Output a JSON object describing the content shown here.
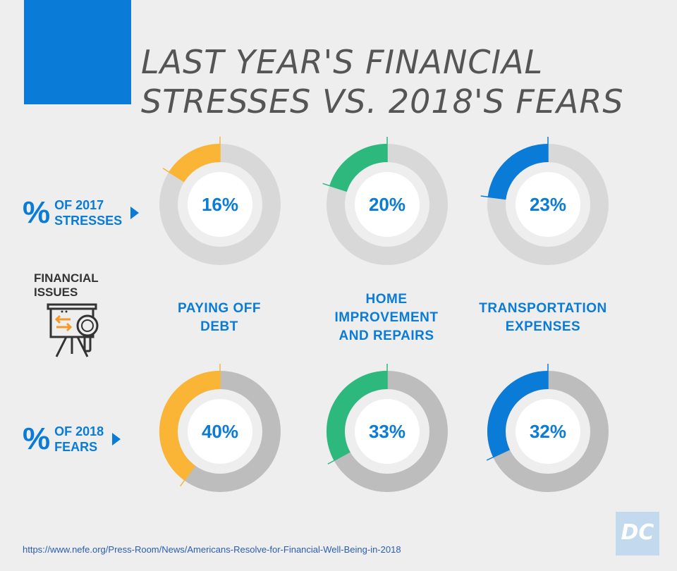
{
  "title": {
    "line1": "LAST YEAR'S FINANCIAL",
    "line2": "STRESSES VS. 2018'S FEARS"
  },
  "rows": {
    "stresses": {
      "pct_sign": "%",
      "line1": "OF 2017",
      "line2": "STRESSES"
    },
    "fears": {
      "pct_sign": "%",
      "line1": "OF 2018",
      "line2": "FEARS"
    }
  },
  "issues_label": {
    "line1": "FINANCIAL",
    "line2": "ISSUES"
  },
  "categories": [
    {
      "line1": "PAYING OFF",
      "line2": "DEBT",
      "line3": ""
    },
    {
      "line1": "HOME",
      "line2": "IMPROVEMENT",
      "line3": "AND REPAIRS"
    },
    {
      "line1": "TRANSPORTATION",
      "line2": "EXPENSES",
      "line3": ""
    }
  ],
  "chart_data": {
    "type": "donut",
    "categories": [
      "PAYING OFF DEBT",
      "HOME IMPROVEMENT AND REPAIRS",
      "TRANSPORTATION EXPENSES"
    ],
    "series": [
      {
        "name": "% OF 2017 STRESSES",
        "values": [
          16,
          20,
          23
        ],
        "labels": [
          "16%",
          "20%",
          "23%"
        ]
      },
      {
        "name": "% OF 2018 FEARS",
        "values": [
          40,
          33,
          32
        ],
        "labels": [
          "40%",
          "33%",
          "32%"
        ]
      }
    ],
    "colors": [
      "#fbb536",
      "#2db87d",
      "#0a7bd6"
    ],
    "track_colors": {
      "stresses": "#d8d8d8",
      "fears": "#bdbdbd"
    }
  },
  "logo": {
    "text": "DC"
  },
  "source": "https://www.nefe.org/Press-Room/News/Americans-Resolve-for-Financial-Well-Being-in-2018",
  "icons": {
    "issues": "presentation-board-magnifier-icon",
    "arrow": "triangle-right-icon"
  }
}
